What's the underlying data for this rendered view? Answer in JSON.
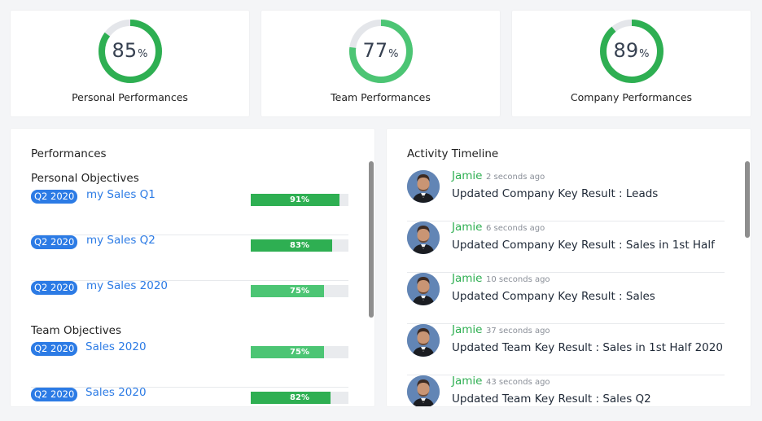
{
  "kpis": [
    {
      "value": "85",
      "unit": "%",
      "label": "Personal Performances",
      "fraction": 0.85,
      "color": "#2eaf52"
    },
    {
      "value": "77",
      "unit": "%",
      "label": "Team Performances",
      "fraction": 0.77,
      "color": "#4cc574"
    },
    {
      "value": "89",
      "unit": "%",
      "label": "Company Performances",
      "fraction": 0.89,
      "color": "#2eaf52"
    }
  ],
  "performances": {
    "title": "Performances",
    "personal_title": "Personal Objectives",
    "team_title": "Team Objectives",
    "personal": [
      {
        "badge": "Q2 2020",
        "name": "my Sales Q1",
        "progress_label": "91%",
        "progress": 0.91
      },
      {
        "badge": "Q2 2020",
        "name": "my Sales Q2",
        "progress_label": "83%",
        "progress": 0.83
      },
      {
        "badge": "Q2 2020",
        "name": "my Sales 2020",
        "progress_label": "75%",
        "progress": 0.75
      }
    ],
    "team": [
      {
        "badge": "Q2 2020",
        "name": "Sales 2020",
        "progress_label": "75%",
        "progress": 0.75
      },
      {
        "badge": "Q2 2020",
        "name": "Sales 2020",
        "progress_label": "82%",
        "progress": 0.82
      }
    ]
  },
  "timeline": {
    "title": "Activity Timeline",
    "items": [
      {
        "user": "Jamie",
        "time": "2 seconds ago",
        "text": "Updated Company Key Result : Leads",
        "avatar": "user-avatar"
      },
      {
        "user": "Jamie",
        "time": "6 seconds ago",
        "text": "Updated Company Key Result : Sales in 1st Half",
        "avatar": "user-avatar"
      },
      {
        "user": "Jamie",
        "time": "10 seconds ago",
        "text": "Updated Company Key Result : Sales",
        "avatar": "user-avatar"
      },
      {
        "user": "Jamie",
        "time": "37 seconds ago",
        "text": "Updated Team Key Result : Sales in 1st Half 2020",
        "avatar": "user-avatar"
      },
      {
        "user": "Jamie",
        "time": "43 seconds ago",
        "text": "Updated Team Key Result : Sales Q2",
        "avatar": "user-avatar"
      }
    ]
  },
  "colors": {
    "accent_blue": "#2c7be5",
    "success_green": "#2eaf52",
    "light_green": "#4cc574",
    "track_gray": "#e4e6ea"
  }
}
